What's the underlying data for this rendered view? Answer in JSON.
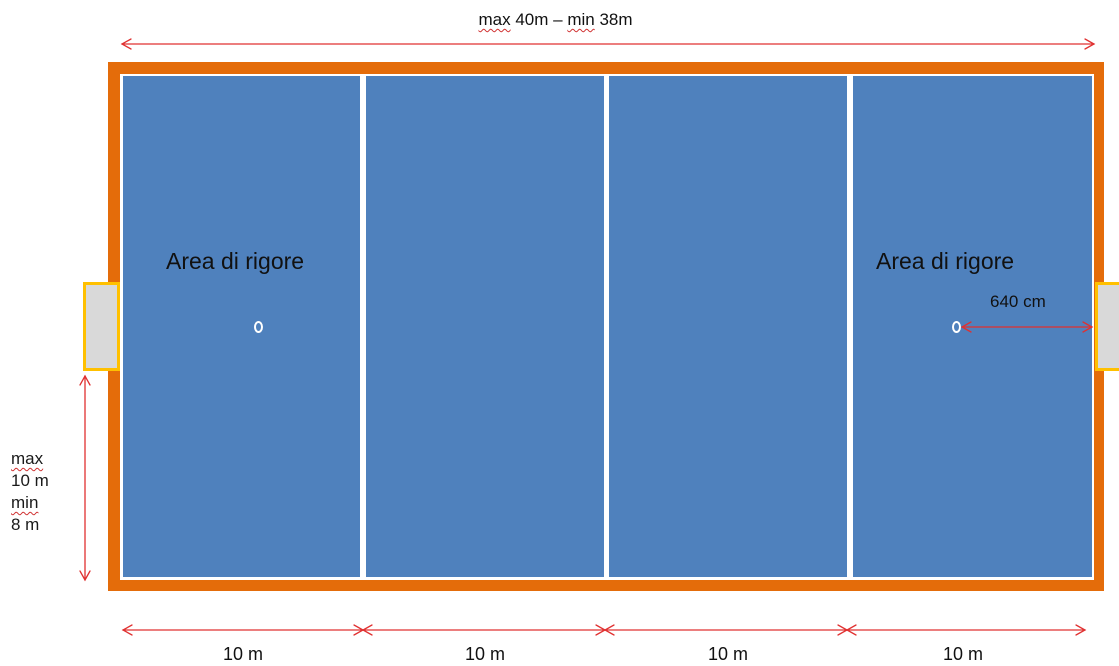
{
  "diagram": {
    "top_dimension": {
      "max_word": "max",
      "text_part1": " 40m – ",
      "min_word": "min",
      "text_part2": " 38m"
    },
    "penalty_area_left": "Area di rigore",
    "penalty_area_right": "Area di rigore",
    "spot_symbol_left": "",
    "spot_symbol_right": "",
    "spot_distance": "640 cm",
    "side_dimension": {
      "max_word": "max",
      "max_value": "10 m",
      "min_word": "min",
      "min_value": "8 m"
    },
    "zone_labels": [
      "10 m",
      "10 m",
      "10 m",
      "10 m"
    ],
    "colors": {
      "field": "#4f81bd",
      "border": "#e46c0a",
      "lines": "#ffffff",
      "goal_fill": "#d9d9d9",
      "goal_outline": "#ffc000",
      "arrows": "#e03030"
    }
  }
}
